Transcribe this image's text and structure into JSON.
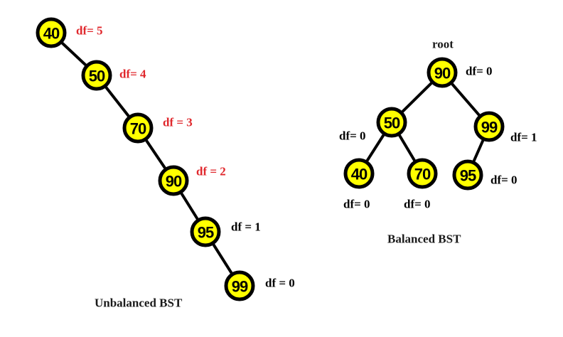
{
  "colors": {
    "node_fill": "#ffff00",
    "node_stroke": "#000000",
    "edge": "#000000",
    "label_red": "#e0282d",
    "label_black": "#000000"
  },
  "unbalanced": {
    "caption": "Unbalanced BST",
    "nodes": [
      {
        "value": "40",
        "df": "df= 5",
        "df_color": "red"
      },
      {
        "value": "50",
        "df": "df= 4",
        "df_color": "red"
      },
      {
        "value": "70",
        "df": "df = 3",
        "df_color": "red"
      },
      {
        "value": "90",
        "df": "df = 2",
        "df_color": "red"
      },
      {
        "value": "95",
        "df": "df = 1",
        "df_color": "black"
      },
      {
        "value": "99",
        "df": "df = 0",
        "df_color": "black"
      }
    ]
  },
  "balanced": {
    "caption": "Balanced BST",
    "root_label": "root",
    "nodes": [
      {
        "value": "90",
        "df": "df= 0"
      },
      {
        "value": "50",
        "df": "df= 0"
      },
      {
        "value": "99",
        "df": "df= 1"
      },
      {
        "value": "40",
        "df": "df= 0"
      },
      {
        "value": "70",
        "df": "df= 0"
      },
      {
        "value": "95",
        "df": "df= 0"
      }
    ]
  }
}
